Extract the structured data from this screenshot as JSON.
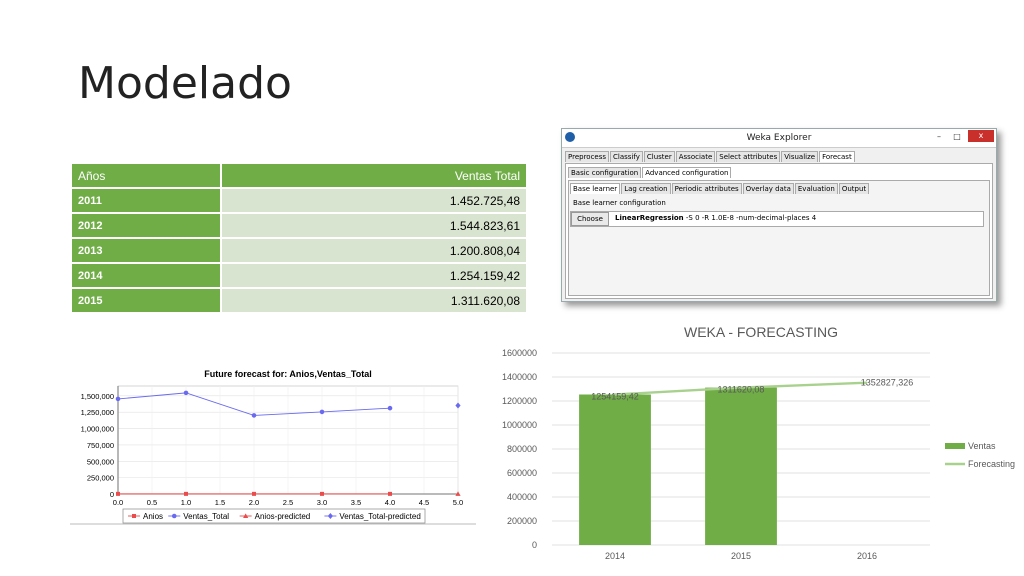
{
  "slide": {
    "title": "Modelado"
  },
  "table": {
    "headers": [
      "Años",
      "Ventas Total"
    ],
    "rows": [
      {
        "year": "2011",
        "value": "1.452.725,48"
      },
      {
        "year": "2012",
        "value": "1.544.823,61"
      },
      {
        "year": "2013",
        "value": "1.200.808,04"
      },
      {
        "year": "2014",
        "value": "1.254.159,42"
      },
      {
        "year": "2015",
        "value": "1.311.620,08"
      }
    ]
  },
  "weka": {
    "window_title": "Weka Explorer",
    "main_tabs": [
      "Preprocess",
      "Classify",
      "Cluster",
      "Associate",
      "Select attributes",
      "Visualize",
      "Forecast"
    ],
    "main_tab_selected": "Forecast",
    "config_tabs": [
      "Basic configuration",
      "Advanced configuration"
    ],
    "config_tab_selected": "Advanced configuration",
    "sub_tabs": [
      "Base learner",
      "Lag creation",
      "Periodic attributes",
      "Overlay data",
      "Evaluation",
      "Output"
    ],
    "sub_tab_selected": "Base learner",
    "group_label": "Base learner configuration",
    "choose_label": "Choose",
    "learner_name": "LinearRegression",
    "learner_options": "-S 0 -R 1.0E-8 -num-decimal-places 4",
    "minimize_glyph": "–",
    "maximize_glyph": "□",
    "close_glyph": "x"
  },
  "chart_data": [
    {
      "type": "line",
      "title": "Future forecast for: Anios,Ventas_Total",
      "x_ticks": [
        "0.0",
        "0.5",
        "1.0",
        "1.5",
        "2.0",
        "2.5",
        "3.0",
        "3.5",
        "4.0",
        "4.5",
        "5.0"
      ],
      "y_ticks": [
        "0",
        "250,000",
        "500,000",
        "750,000",
        "1,000,000",
        "1,250,000",
        "1,500,000"
      ],
      "xlim": [
        0,
        5
      ],
      "ylim": [
        0,
        1650000
      ],
      "series": [
        {
          "name": "Anios",
          "color": "#e84c4c",
          "marker": "square",
          "x": [
            0,
            1,
            2,
            3,
            4
          ],
          "y": [
            2011,
            2012,
            2013,
            2014,
            2015
          ]
        },
        {
          "name": "Ventas_Total",
          "color": "#6a6af0",
          "marker": "circle",
          "x": [
            0,
            1,
            2,
            3,
            4
          ],
          "y": [
            1452725,
            1544823,
            1200808,
            1254159,
            1311620
          ]
        },
        {
          "name": "Anios-predicted",
          "color": "#e84c4c",
          "marker": "triangle",
          "x": [
            5
          ],
          "y": [
            2016
          ]
        },
        {
          "name": "Ventas_Total-predicted",
          "color": "#6a6af0",
          "marker": "diamond",
          "x": [
            5
          ],
          "y": [
            1352827
          ]
        }
      ],
      "legend": "bottom"
    },
    {
      "type": "bar",
      "title": "WEKA - FORECASTING",
      "categories": [
        "2014",
        "2015",
        "2016"
      ],
      "ylim": [
        0,
        1600000
      ],
      "y_ticks": [
        "0",
        "200000",
        "400000",
        "600000",
        "800000",
        "1000000",
        "1200000",
        "1400000",
        "1600000"
      ],
      "series": [
        {
          "name": "Ventas",
          "color": "#70ad47",
          "values": [
            1254159.42,
            1311620.08,
            null
          ]
        },
        {
          "name": "Forecasting",
          "color": "#a9d18e",
          "values": [
            1254159.42,
            1311620.08,
            1352827.326
          ]
        }
      ],
      "data_labels": [
        "1254159,42",
        "1311620,08",
        "1352827,326"
      ],
      "legend": "right"
    }
  ]
}
